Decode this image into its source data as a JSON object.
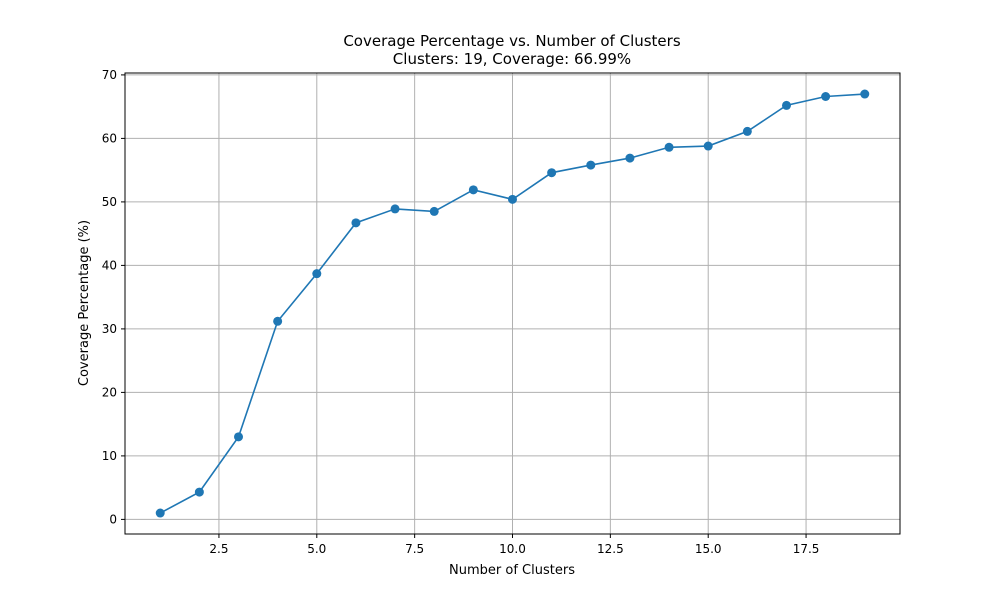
{
  "chart_data": {
    "type": "line",
    "title": "Coverage Percentage vs. Number of Clusters",
    "subtitle": "Clusters: 19, Coverage: 66.99%",
    "xlabel": "Number of Clusters",
    "ylabel": "Coverage Percentage (%)",
    "xlim": [
      0.1,
      19.9
    ],
    "ylim": [
      -2.3,
      70.3
    ],
    "xticks": [
      2.5,
      5.0,
      7.5,
      10.0,
      12.5,
      15.0,
      17.5
    ],
    "xtick_labels": [
      "2.5",
      "5.0",
      "7.5",
      "10.0",
      "12.5",
      "15.0",
      "17.5"
    ],
    "yticks": [
      0,
      10,
      20,
      30,
      40,
      50,
      60,
      70
    ],
    "ytick_labels": [
      "0",
      "10",
      "20",
      "30",
      "40",
      "50",
      "60",
      "70"
    ],
    "grid": true,
    "series": [
      {
        "color": "#1f77b4",
        "marker": "circle",
        "x": [
          1,
          2,
          3,
          4,
          5,
          6,
          7,
          8,
          9,
          10,
          11,
          12,
          13,
          14,
          15,
          16,
          17,
          18,
          19
        ],
        "y": [
          1.0,
          4.3,
          13.0,
          31.2,
          38.7,
          46.7,
          48.9,
          48.5,
          51.9,
          50.4,
          54.6,
          55.8,
          56.9,
          58.6,
          58.8,
          61.1,
          65.2,
          66.6,
          66.99
        ]
      }
    ]
  }
}
